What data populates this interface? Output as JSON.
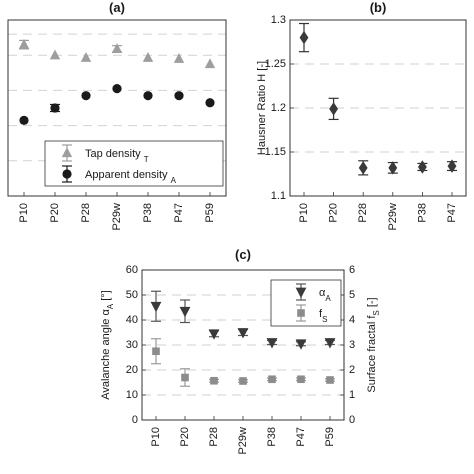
{
  "chart_data": [
    {
      "panel": "(a)",
      "type": "scatter",
      "categories": [
        "P10",
        "P20",
        "P28",
        "P29w",
        "P38",
        "P47",
        "P59"
      ],
      "ylabel": "",
      "ylim": [
        0,
        5
      ],
      "ytick_labels": false,
      "grid": "horizontal dashed",
      "legend_position": "bottom-right",
      "series": [
        {
          "name": "Tap density ρT",
          "label_base": "Tap density ",
          "label_sub": "T",
          "marker": "triangle-up",
          "color": "#9e9e9e",
          "values": [
            4.3,
            4.0,
            3.93,
            4.18,
            3.93,
            3.9,
            3.75
          ],
          "err": [
            0.12,
            0,
            0,
            0.09,
            0,
            0,
            0
          ]
        },
        {
          "name": "Apparent density ρA",
          "label_base": "Apparent density ",
          "label_sub": "A",
          "marker": "circle",
          "color": "#1a1a1a",
          "values": [
            2.15,
            2.5,
            2.85,
            3.05,
            2.85,
            2.85,
            2.65
          ],
          "err": [
            0,
            0.1,
            0,
            0,
            0,
            0,
            0
          ]
        }
      ]
    },
    {
      "panel": "(b)",
      "type": "scatter",
      "categories": [
        "P10",
        "P20",
        "P28",
        "P29w",
        "P38",
        "P47"
      ],
      "ylabel": "Hausner Ratio H [-]",
      "ylim": [
        1.1,
        1.3
      ],
      "yticks": [
        "1.1",
        "1.15",
        "1.2",
        "1.25",
        "1.3"
      ],
      "grid": "horizontal dashed",
      "series": [
        {
          "name": "Hausner ratio",
          "marker": "diamond",
          "color": "#3a3a3a",
          "values": [
            1.28,
            1.199,
            1.132,
            1.132,
            1.133,
            1.134
          ],
          "err": [
            0.016,
            0.012,
            0.008,
            0.006,
            0.004,
            0.005
          ]
        }
      ]
    },
    {
      "panel": "(c)",
      "type": "scatter",
      "categories": [
        "P10",
        "P20",
        "P28",
        "P29w",
        "P38",
        "P47",
        "P59"
      ],
      "ylabel_left": "Avalanche angle αA [°]",
      "ylabel_left_base": "Avalanche angle α",
      "ylabel_left_sub": "A",
      "ylabel_left_unit": " [°]",
      "ylim_left": [
        0,
        60
      ],
      "yticks_left": [
        "0",
        "10",
        "20",
        "30",
        "40",
        "50",
        "60"
      ],
      "ylabel_right": "Surface fractal fS [-]",
      "ylabel_right_base": "Surface fractal f",
      "ylabel_right_sub": "S",
      "ylabel_right_unit": " [-]",
      "ylim_right": [
        0,
        6
      ],
      "yticks_right": [
        "0",
        "1",
        "2",
        "3",
        "4",
        "5",
        "6"
      ],
      "grid": "horizontal dashed",
      "legend_position": "top-right",
      "series": [
        {
          "name": "αA",
          "label_base": "α",
          "label_sub": "A",
          "axis": "left",
          "marker": "triangle-down",
          "color": "#3a3a3a",
          "values": [
            45.5,
            43.5,
            34.5,
            35,
            31,
            30.5,
            31
          ],
          "err": [
            6,
            4.5,
            1.2,
            1.2,
            0.8,
            0.8,
            0.8
          ]
        },
        {
          "name": "fS",
          "label_base": "f",
          "label_sub": "S",
          "axis": "right",
          "marker": "square",
          "color": "#8c8c8c",
          "values": [
            2.75,
            1.7,
            1.57,
            1.56,
            1.63,
            1.63,
            1.6
          ],
          "err": [
            0.5,
            0.35,
            0.05,
            0.05,
            0.05,
            0.05,
            0.05
          ]
        }
      ]
    }
  ]
}
